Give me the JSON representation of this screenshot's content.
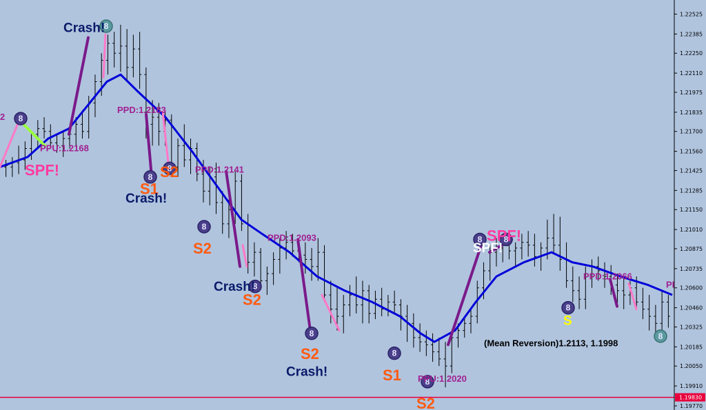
{
  "chart_data": {
    "type": "ohlc",
    "ylim": [
      1.1977,
      1.226
    ],
    "y_ticks": [
      "1.22525",
      "1.22385",
      "1.22250",
      "1.22110",
      "1.21975",
      "1.21835",
      "1.21700",
      "1.21560",
      "1.21425",
      "1.21285",
      "1.21150",
      "1.21010",
      "1.20875",
      "1.20735",
      "1.20600",
      "1.20460",
      "1.20325",
      "1.20185",
      "1.20050",
      "1.19910",
      "1.19770"
    ],
    "current_price": "1.19830",
    "colors": {
      "background": "#b0c4de",
      "ma": "#0000d8",
      "price_line": "#e8003c",
      "bar": "#000000",
      "crash": "#7a1a8a",
      "spf": "#ff78c8",
      "pp": "#a02090",
      "s_label": "#ff5a10"
    },
    "ohlc": [
      [
        1.2145,
        1.215,
        1.2138,
        1.2146
      ],
      [
        1.2145,
        1.2152,
        1.2138,
        1.2148
      ],
      [
        1.2148,
        1.216,
        1.214,
        1.215
      ],
      [
        1.215,
        1.2163,
        1.2143,
        1.2158
      ],
      [
        1.2158,
        1.217,
        1.215,
        1.2168
      ],
      [
        1.2168,
        1.2178,
        1.2158,
        1.2172
      ],
      [
        1.2172,
        1.218,
        1.2165,
        1.217
      ],
      [
        1.217,
        1.2175,
        1.2158,
        1.2162
      ],
      [
        1.2162,
        1.2168,
        1.2155,
        1.216
      ],
      [
        1.216,
        1.217,
        1.2152,
        1.2165
      ],
      [
        1.2165,
        1.2172,
        1.2158,
        1.2168
      ],
      [
        1.2168,
        1.218,
        1.216,
        1.2175
      ],
      [
        1.2175,
        1.2185,
        1.2165,
        1.217
      ],
      [
        1.217,
        1.2195,
        1.2165,
        1.219
      ],
      [
        1.219,
        1.221,
        1.218,
        1.2205
      ],
      [
        1.2205,
        1.2225,
        1.2195,
        1.222
      ],
      [
        1.222,
        1.2238,
        1.221,
        1.2232
      ],
      [
        1.2232,
        1.224,
        1.2215,
        1.2225
      ],
      [
        1.2225,
        1.2245,
        1.2212,
        1.223
      ],
      [
        1.223,
        1.2242,
        1.2205,
        1.2215
      ],
      [
        1.2215,
        1.2238,
        1.2208,
        1.2228
      ],
      [
        1.2228,
        1.224,
        1.22,
        1.221
      ],
      [
        1.221,
        1.2215,
        1.2165,
        1.2175
      ],
      [
        1.2175,
        1.2192,
        1.216,
        1.218
      ],
      [
        1.218,
        1.219,
        1.216,
        1.217
      ],
      [
        1.217,
        1.2185,
        1.216,
        1.2178
      ],
      [
        1.2178,
        1.2182,
        1.214,
        1.2145
      ],
      [
        1.2145,
        1.2165,
        1.2138,
        1.216
      ],
      [
        1.216,
        1.2175,
        1.2145,
        1.215
      ],
      [
        1.215,
        1.2165,
        1.214,
        1.2158
      ],
      [
        1.2158,
        1.2162,
        1.2135,
        1.214
      ],
      [
        1.214,
        1.215,
        1.212,
        1.2128
      ],
      [
        1.2128,
        1.2145,
        1.2118,
        1.2138
      ],
      [
        1.2138,
        1.2148,
        1.2112,
        1.212
      ],
      [
        1.212,
        1.2128,
        1.2098,
        1.2105
      ],
      [
        1.2105,
        1.2122,
        1.2095,
        1.2115
      ],
      [
        1.2115,
        1.2142,
        1.2105,
        1.2135
      ],
      [
        1.2135,
        1.214,
        1.21,
        1.2105
      ],
      [
        1.2105,
        1.2112,
        1.207,
        1.2078
      ],
      [
        1.2078,
        1.2092,
        1.2068,
        1.2085
      ],
      [
        1.2085,
        1.2088,
        1.206,
        1.2065
      ],
      [
        1.2065,
        1.2075,
        1.2055,
        1.207
      ],
      [
        1.207,
        1.2085,
        1.2062,
        1.208
      ],
      [
        1.208,
        1.2095,
        1.207,
        1.2088
      ],
      [
        1.2088,
        1.21,
        1.208,
        1.2092
      ],
      [
        1.2092,
        1.2098,
        1.2082,
        1.2086
      ],
      [
        1.2086,
        1.2095,
        1.2078,
        1.2083
      ],
      [
        1.2083,
        1.2092,
        1.207,
        1.208
      ],
      [
        1.208,
        1.2088,
        1.2065,
        1.2075
      ],
      [
        1.2075,
        1.2095,
        1.2065,
        1.2085
      ],
      [
        1.2085,
        1.209,
        1.205,
        1.2055
      ],
      [
        1.2055,
        1.2065,
        1.2035,
        1.2045
      ],
      [
        1.2045,
        1.206,
        1.203,
        1.204
      ],
      [
        1.204,
        1.2055,
        1.2028,
        1.2048
      ],
      [
        1.2048,
        1.2062,
        1.204,
        1.2055
      ],
      [
        1.2055,
        1.2068,
        1.2042,
        1.2048
      ],
      [
        1.2048,
        1.2065,
        1.2035,
        1.2058
      ],
      [
        1.2058,
        1.2062,
        1.2035,
        1.2042
      ],
      [
        1.2042,
        1.2058,
        1.2038,
        1.2052
      ],
      [
        1.2052,
        1.206,
        1.204,
        1.2045
      ],
      [
        1.2045,
        1.2055,
        1.204,
        1.205
      ],
      [
        1.205,
        1.2058,
        1.2042,
        1.2048
      ],
      [
        1.2048,
        1.2052,
        1.203,
        1.204
      ],
      [
        1.204,
        1.2048,
        1.2022,
        1.2035
      ],
      [
        1.2035,
        1.2042,
        1.2018,
        1.2025
      ],
      [
        1.2025,
        1.2035,
        1.2015,
        1.2022
      ],
      [
        1.2022,
        1.203,
        1.2012,
        1.202
      ],
      [
        1.202,
        1.2028,
        1.2008,
        1.2015
      ],
      [
        1.2015,
        1.2025,
        1.2005,
        1.201
      ],
      [
        1.201,
        1.2022,
        1.199,
        1.2005
      ],
      [
        1.2005,
        1.203,
        1.2,
        1.2025
      ],
      [
        1.2025,
        1.2035,
        1.2018,
        1.203
      ],
      [
        1.203,
        1.204,
        1.2025,
        1.2035
      ],
      [
        1.2035,
        1.2045,
        1.2028,
        1.204
      ],
      [
        1.204,
        1.2065,
        1.2035,
        1.206
      ],
      [
        1.206,
        1.2078,
        1.2052,
        1.2072
      ],
      [
        1.2072,
        1.209,
        1.2065,
        1.2085
      ],
      [
        1.2085,
        1.2095,
        1.2075,
        1.2088
      ],
      [
        1.2088,
        1.2098,
        1.2078,
        1.209
      ],
      [
        1.209,
        1.2095,
        1.208,
        1.2086
      ],
      [
        1.2086,
        1.2092,
        1.2075,
        1.2088
      ],
      [
        1.2088,
        1.2098,
        1.208,
        1.2092
      ],
      [
        1.2092,
        1.21,
        1.2082,
        1.209
      ],
      [
        1.209,
        1.2098,
        1.2075,
        1.2082
      ],
      [
        1.2082,
        1.2092,
        1.2072,
        1.2088
      ],
      [
        1.2088,
        1.2108,
        1.208,
        1.2095
      ],
      [
        1.2095,
        1.2112,
        1.2085,
        1.209
      ],
      [
        1.209,
        1.211,
        1.2072,
        1.208
      ],
      [
        1.208,
        1.2092,
        1.206,
        1.2065
      ],
      [
        1.2065,
        1.2075,
        1.205,
        1.2058
      ],
      [
        1.2058,
        1.2068,
        1.2045,
        1.2052
      ],
      [
        1.2052,
        1.2075,
        1.2045,
        1.207
      ],
      [
        1.207,
        1.208,
        1.206,
        1.2075
      ],
      [
        1.2075,
        1.2082,
        1.2065,
        1.2072
      ],
      [
        1.2072,
        1.2078,
        1.206,
        1.2068
      ],
      [
        1.2068,
        1.2076,
        1.2055,
        1.2062
      ],
      [
        1.2062,
        1.207,
        1.2048,
        1.2058
      ],
      [
        1.2058,
        1.2068,
        1.2045,
        1.2055
      ],
      [
        1.2055,
        1.2065,
        1.2048,
        1.206
      ],
      [
        1.206,
        1.2068,
        1.2045,
        1.205
      ],
      [
        1.205,
        1.206,
        1.2038,
        1.2045
      ],
      [
        1.2045,
        1.2055,
        1.203,
        1.204
      ],
      [
        1.204,
        1.2048,
        1.2025,
        1.2035
      ],
      [
        1.2035,
        1.2058,
        1.203,
        1.205
      ],
      [
        1.205,
        1.2055,
        1.2032,
        1.204
      ]
    ],
    "ma_line": [
      [
        0,
        1.2145
      ],
      [
        40,
        1.2152
      ],
      [
        70,
        1.2165
      ],
      [
        100,
        1.2172
      ],
      [
        130,
        1.219
      ],
      [
        155,
        1.2205
      ],
      [
        175,
        1.221
      ],
      [
        200,
        1.2198
      ],
      [
        240,
        1.218
      ],
      [
        280,
        1.2155
      ],
      [
        320,
        1.2128
      ],
      [
        350,
        1.2108
      ],
      [
        380,
        1.2098
      ],
      [
        420,
        1.2085
      ],
      [
        460,
        1.2068
      ],
      [
        500,
        1.2058
      ],
      [
        540,
        1.205
      ],
      [
        580,
        1.204
      ],
      [
        610,
        1.2028
      ],
      [
        630,
        1.2022
      ],
      [
        660,
        1.203
      ],
      [
        690,
        1.205
      ],
      [
        720,
        1.2068
      ],
      [
        760,
        1.2078
      ],
      [
        800,
        1.2085
      ],
      [
        830,
        1.2078
      ],
      [
        860,
        1.2075
      ],
      [
        900,
        1.2068
      ],
      [
        940,
        1.2062
      ],
      [
        975,
        1.2055
      ]
    ],
    "segments": [
      {
        "kind": "crash",
        "x1": 100,
        "y1": 1.2168,
        "x2": 128,
        "y2": 1.2236
      },
      {
        "kind": "spf",
        "x1": 150,
        "y1": 1.2208,
        "x2": 153,
        "y2": 1.2238
      },
      {
        "kind": "crash",
        "x1": 212,
        "y1": 1.2182,
        "x2": 220,
        "y2": 1.2138
      },
      {
        "kind": "spf",
        "x1": 236,
        "y1": 1.2184,
        "x2": 244,
        "y2": 1.2148
      },
      {
        "kind": "crash",
        "x1": 328,
        "y1": 1.2142,
        "x2": 348,
        "y2": 1.2075
      },
      {
        "kind": "spf",
        "x1": 352,
        "y1": 1.209,
        "x2": 358,
        "y2": 1.2075
      },
      {
        "kind": "crash",
        "x1": 432,
        "y1": 1.2094,
        "x2": 450,
        "y2": 1.203
      },
      {
        "kind": "spf",
        "x1": 467,
        "y1": 1.2055,
        "x2": 492,
        "y2": 1.203
      },
      {
        "kind": "crash",
        "x1": 650,
        "y1": 1.202,
        "x2": 700,
        "y2": 1.2093
      },
      {
        "kind": "crash",
        "x1": 710,
        "y1": 1.2085,
        "x2": 742,
        "y2": 1.2094
      },
      {
        "kind": "crash",
        "x1": 885,
        "y1": 1.2066,
        "x2": 895,
        "y2": 1.2047
      },
      {
        "kind": "spf",
        "x1": 912,
        "y1": 1.2063,
        "x2": 923,
        "y2": 1.2045
      },
      {
        "kind": "spf",
        "x1": 0,
        "y1": 1.2145,
        "x2": 28,
        "y2": 1.2178
      },
      {
        "kind": "green",
        "x1": 28,
        "y1": 1.2178,
        "x2": 65,
        "y2": 1.216
      }
    ],
    "markers": [
      {
        "x": 30,
        "y": 1.2179,
        "variant": "dark"
      },
      {
        "x": 154,
        "y": 1.2244,
        "variant": "teal"
      },
      {
        "x": 218,
        "y": 1.2138,
        "variant": "dark"
      },
      {
        "x": 246,
        "y": 1.2144,
        "variant": "dark"
      },
      {
        "x": 296,
        "y": 1.2103,
        "variant": "dark"
      },
      {
        "x": 370,
        "y": 1.2061,
        "variant": "dark"
      },
      {
        "x": 452,
        "y": 1.2028,
        "variant": "dark"
      },
      {
        "x": 572,
        "y": 1.2014,
        "variant": "dark"
      },
      {
        "x": 620,
        "y": 1.1994,
        "variant": "dark"
      },
      {
        "x": 696,
        "y": 1.2094,
        "variant": "dark"
      },
      {
        "x": 734,
        "y": 1.2094,
        "variant": "dark"
      },
      {
        "x": 824,
        "y": 1.2046,
        "variant": "dark"
      },
      {
        "x": 958,
        "y": 1.2026,
        "variant": "teal"
      }
    ],
    "annotations": [
      {
        "text": "Crash!",
        "kind": "crash",
        "x": 92,
        "y": 1.224
      },
      {
        "text": "PPD:1.2183",
        "kind": "pp",
        "x": 170,
        "y": 1.2183
      },
      {
        "text": "PPU:1.2168",
        "kind": "pp",
        "x": 58,
        "y": 1.2156
      },
      {
        "text": "SPF!",
        "kind": "spf",
        "x": 36,
        "y": 1.2139
      },
      {
        "text": "2",
        "kind": "pp",
        "x": 0,
        "y": 1.2178
      },
      {
        "text": "S1",
        "kind": "s",
        "x": 203,
        "y": 1.2126
      },
      {
        "text": "S2",
        "kind": "s",
        "x": 232,
        "y": 1.2138
      },
      {
        "text": "Crash!",
        "kind": "crash",
        "x": 182,
        "y": 1.212
      },
      {
        "text": "PPD:1.2141",
        "kind": "pp",
        "x": 283,
        "y": 1.2141
      },
      {
        "text": "S2",
        "kind": "s",
        "x": 280,
        "y": 1.2084
      },
      {
        "text": "PPD:1.2093",
        "kind": "pp",
        "x": 388,
        "y": 1.2093
      },
      {
        "text": "Crash!",
        "kind": "crash",
        "x": 310,
        "y": 1.2058
      },
      {
        "text": "S2",
        "kind": "s",
        "x": 352,
        "y": 1.2048
      },
      {
        "text": "S2",
        "kind": "s",
        "x": 436,
        "y": 1.201
      },
      {
        "text": "Crash!",
        "kind": "crash",
        "x": 415,
        "y": 1.1998
      },
      {
        "text": "S1",
        "kind": "s",
        "x": 555,
        "y": 1.1995
      },
      {
        "text": "PPU:1.2020",
        "kind": "pp",
        "x": 606,
        "y": 1.1994
      },
      {
        "text": "S2",
        "kind": "s",
        "x": 604,
        "y": 1.1975
      },
      {
        "text": "SPF!",
        "kind": "spf",
        "x": 706,
        "y": 1.2093
      },
      {
        "text": "SPF!",
        "kind": "white",
        "x": 686,
        "y": 1.2085
      },
      {
        "text": "PPD:1.2066",
        "kind": "pp",
        "x": 846,
        "y": 1.2066
      },
      {
        "text": "S",
        "kind": "yellow",
        "x": 817,
        "y": 1.2034
      },
      {
        "text": "(Mean Reversion)1.2113, 1.1998",
        "kind": "black",
        "x": 702,
        "y": 1.2019
      },
      {
        "text": "PP",
        "kind": "pp",
        "x": 966,
        "y": 1.206
      }
    ]
  }
}
